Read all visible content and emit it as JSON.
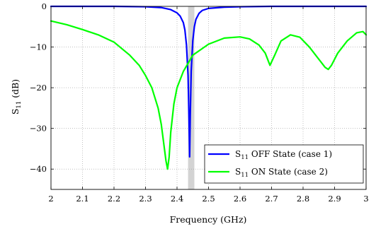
{
  "chart_data": {
    "type": "line",
    "xlabel": "Frequency (GHz)",
    "ylabel": "S11 (dB)",
    "xlim": [
      2,
      3
    ],
    "ylim": [
      -45,
      0
    ],
    "grid": true,
    "legend_position": "bottom-right",
    "shaded_band": {
      "x": [
        2.435,
        2.455
      ],
      "color": "#d3d3d3"
    },
    "x_ticks": [
      "2",
      "2.1",
      "2.2",
      "2.3",
      "2.4",
      "2.5",
      "2.6",
      "2.7",
      "2.8",
      "2.9",
      "3"
    ],
    "y_ticks": [
      "0",
      "−10",
      "−20",
      "−30",
      "−40"
    ],
    "series": [
      {
        "name": "S11 OFF State (case 1)",
        "color": "#0000ff",
        "x": [
          2.0,
          2.1,
          2.2,
          2.3,
          2.35,
          2.38,
          2.4,
          2.41,
          2.42,
          2.425,
          2.43,
          2.435,
          2.438,
          2.44,
          2.442,
          2.445,
          2.45,
          2.455,
          2.46,
          2.47,
          2.48,
          2.5,
          2.55,
          2.6,
          2.7,
          2.8,
          2.9,
          3.0
        ],
        "y": [
          0,
          0,
          0,
          -0.1,
          -0.3,
          -0.8,
          -1.6,
          -2.4,
          -4.0,
          -5.8,
          -9.5,
          -17,
          -28,
          -37,
          -27,
          -16,
          -8.5,
          -5,
          -3.2,
          -1.7,
          -1.0,
          -0.5,
          -0.2,
          -0.1,
          0,
          0,
          0,
          0
        ]
      },
      {
        "name": "S11 ON State (case 2)",
        "color": "#00ff00",
        "x": [
          2.0,
          2.05,
          2.1,
          2.15,
          2.2,
          2.25,
          2.28,
          2.3,
          2.32,
          2.34,
          2.35,
          2.36,
          2.365,
          2.37,
          2.375,
          2.38,
          2.39,
          2.4,
          2.42,
          2.45,
          2.5,
          2.55,
          2.6,
          2.63,
          2.66,
          2.68,
          2.695,
          2.71,
          2.73,
          2.76,
          2.79,
          2.82,
          2.85,
          2.87,
          2.88,
          2.89,
          2.91,
          2.94,
          2.97,
          2.99,
          3.0
        ],
        "y": [
          -3.6,
          -4.5,
          -5.7,
          -7.0,
          -8.8,
          -12.0,
          -14.5,
          -17.0,
          -20.0,
          -25.0,
          -29.0,
          -35.0,
          -38.0,
          -40.0,
          -37.0,
          -31.0,
          -24.0,
          -20.0,
          -16.0,
          -12.0,
          -9.3,
          -7.8,
          -7.5,
          -8.0,
          -9.5,
          -11.5,
          -14.5,
          -12.0,
          -8.5,
          -7.0,
          -7.6,
          -10.0,
          -13.0,
          -15.0,
          -15.5,
          -14.5,
          -11.5,
          -8.5,
          -6.5,
          -6.2,
          -7.0
        ]
      }
    ]
  }
}
